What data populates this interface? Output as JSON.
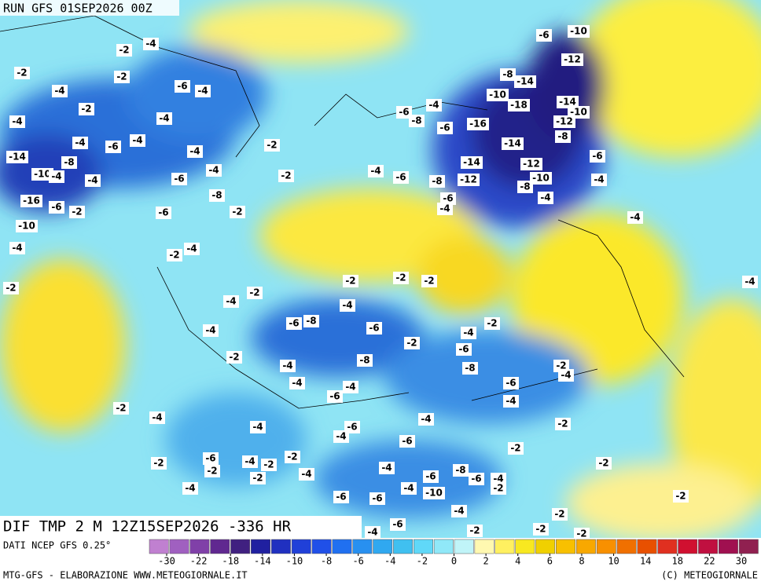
{
  "header": {
    "run": "RUN GFS 01SEP2026 00Z"
  },
  "map": {
    "field_label": "DIF TMP 2 M 12Z15SEP2026 -336 HR",
    "contour_labels": [
      -4,
      -2,
      -2,
      -2,
      -4,
      -6,
      -4,
      -2,
      -4,
      -4,
      -4,
      -6,
      -4,
      -14,
      -8,
      -4,
      -2,
      -4,
      -6,
      -10,
      -4,
      -4,
      -16,
      -6,
      -2,
      -8,
      -2,
      -6,
      -10,
      -4,
      -2,
      -4,
      -2,
      -2,
      -4,
      -6,
      -4,
      -6,
      -8,
      -6,
      -16,
      -14,
      -14,
      -12,
      -10,
      -12,
      -8,
      -6,
      -4,
      -8,
      -4,
      -6,
      -4,
      -10,
      -6,
      -12,
      -14,
      -8,
      -10,
      -14,
      -10,
      -12,
      -8,
      -18,
      -4,
      -4,
      -2,
      -2,
      -2,
      -4,
      -2,
      -4,
      -6,
      -8,
      -6,
      -4,
      -2,
      -4,
      -2,
      -6,
      -8,
      -2,
      -4,
      -8,
      -4,
      -4,
      -6,
      -6,
      -4,
      -2,
      -4,
      -2,
      -4,
      -4,
      -4,
      -6,
      -4,
      -6,
      -2,
      -2,
      -2,
      -6,
      -2,
      -4,
      -2,
      -2,
      -2,
      -4,
      -4,
      -8,
      -6,
      -6,
      -4,
      -2,
      -2,
      -4,
      -6,
      -6,
      -4,
      -10,
      -4,
      -2,
      -6,
      -4,
      -2,
      -2,
      -2,
      -2
    ]
  },
  "colorbar": {
    "source": "DATI NCEP GFS 0.25°",
    "colors": [
      "#c080d0",
      "#a060c0",
      "#8040a8",
      "#602890",
      "#402080",
      "#2020a0",
      "#2030c0",
      "#2040d8",
      "#2050e8",
      "#2070f0",
      "#2890f0",
      "#30a8f0",
      "#40c0f0",
      "#60d8f8",
      "#90e8f8",
      "#c0f4f8",
      "#fff8b0",
      "#fff060",
      "#f8e820",
      "#f0d000",
      "#f8c000",
      "#f8a800",
      "#f89000",
      "#f07000",
      "#e85000",
      "#e03020",
      "#d01030",
      "#c01040",
      "#a01050",
      "#902050"
    ],
    "ticks": [
      -30,
      -22,
      -18,
      -14,
      -10,
      -8,
      -6,
      -4,
      -2,
      0,
      2,
      4,
      6,
      8,
      10,
      14,
      18,
      22,
      30
    ]
  },
  "footer": {
    "left": "MTG-GFS - ELABORAZIONE WWW.METEOGIORNALE.IT",
    "right": "(C) METEOGIORNALE"
  }
}
